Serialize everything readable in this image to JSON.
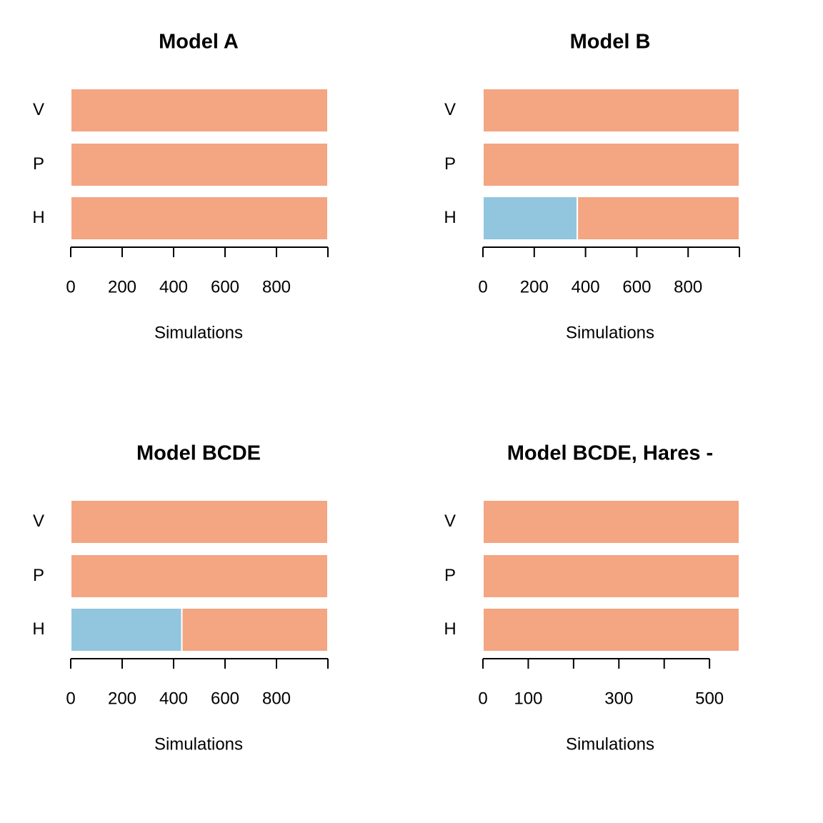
{
  "colors": {
    "other": "#f4a582",
    "highlight": "#92c5de"
  },
  "chart_data": [
    {
      "type": "bar",
      "orientation": "horizontal",
      "stacked": true,
      "title": "Model A",
      "xlabel": "Simulations",
      "categories": [
        "V",
        "P",
        "H"
      ],
      "series": [
        {
          "values": [
            0,
            0,
            0
          ],
          "color": "#92c5de"
        },
        {
          "values": [
            1000,
            1000,
            1000
          ],
          "color": "#f4a582"
        }
      ],
      "xlim": [
        0,
        1000
      ],
      "xticks": [
        0,
        200,
        400,
        600,
        800,
        1000
      ],
      "xtick_labels": [
        "0",
        "200",
        "400",
        "600",
        "800",
        ""
      ]
    },
    {
      "type": "bar",
      "orientation": "horizontal",
      "stacked": true,
      "title": "Model B",
      "xlabel": "Simulations",
      "categories": [
        "V",
        "P",
        "H"
      ],
      "series": [
        {
          "values": [
            0,
            0,
            368
          ],
          "color": "#92c5de"
        },
        {
          "values": [
            1000,
            1000,
            632
          ],
          "color": "#f4a582"
        }
      ],
      "xlim": [
        0,
        1000
      ],
      "xticks": [
        0,
        200,
        400,
        600,
        800,
        1000
      ],
      "xtick_labels": [
        "0",
        "200",
        "400",
        "600",
        "800",
        ""
      ]
    },
    {
      "type": "bar",
      "orientation": "horizontal",
      "stacked": true,
      "title": "Model BCDE",
      "xlabel": "Simulations",
      "categories": [
        "V",
        "P",
        "H"
      ],
      "series": [
        {
          "values": [
            0,
            0,
            432
          ],
          "color": "#92c5de"
        },
        {
          "values": [
            1000,
            1000,
            568
          ],
          "color": "#f4a582"
        }
      ],
      "xlim": [
        0,
        1000
      ],
      "xticks": [
        0,
        200,
        400,
        600,
        800,
        1000
      ],
      "xtick_labels": [
        "0",
        "200",
        "400",
        "600",
        "800",
        ""
      ]
    },
    {
      "type": "bar",
      "orientation": "horizontal",
      "stacked": true,
      "title": "Model BCDE, Hares -",
      "xlabel": "Simulations",
      "categories": [
        "V",
        "P",
        "H"
      ],
      "series": [
        {
          "values": [
            0,
            0,
            0
          ],
          "color": "#92c5de"
        },
        {
          "values": [
            566,
            566,
            566
          ],
          "color": "#f4a582"
        }
      ],
      "xlim": [
        0,
        566
      ],
      "xticks": [
        0,
        100,
        200,
        300,
        400,
        500
      ],
      "xtick_labels": [
        "0",
        "100",
        "",
        "300",
        "",
        "500"
      ]
    }
  ]
}
